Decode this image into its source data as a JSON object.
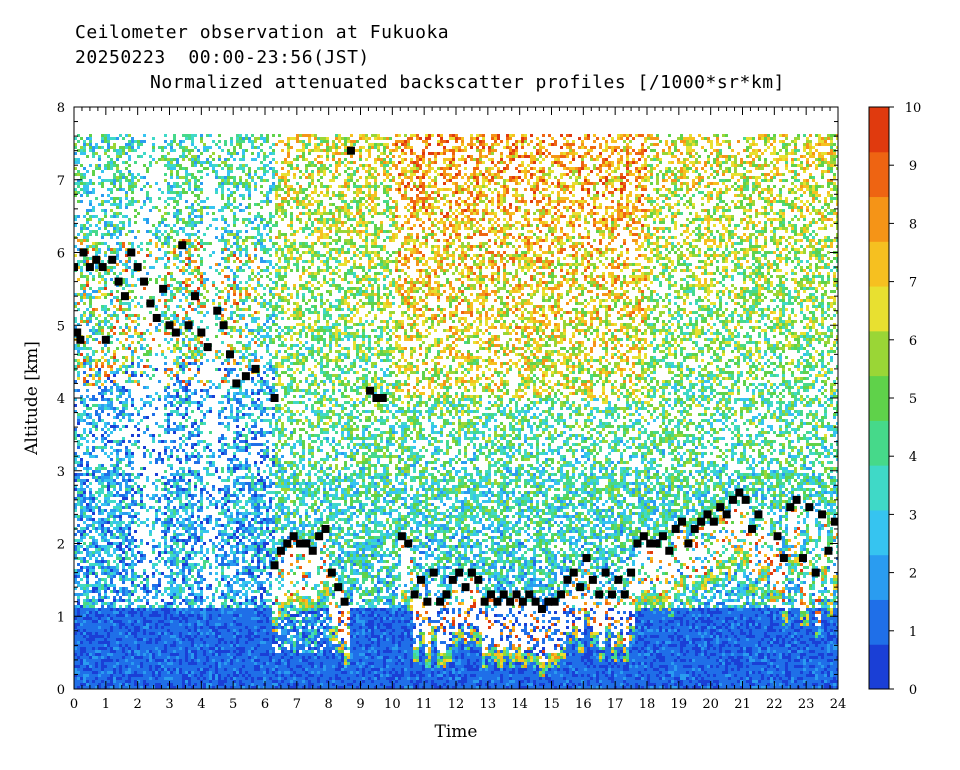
{
  "header": {
    "line1": "Ceilometer observation at Fukuoka",
    "line2": "20250223  00:00-23:56(JST)",
    "line3": "Normalized attenuated backscatter profiles [/1000*sr*km]"
  },
  "chart_data": {
    "type": "heatmap",
    "title": "Normalized attenuated backscatter profiles [/1000*sr*km]",
    "xlabel": "Time",
    "ylabel": "Altitude [km]",
    "xlim": [
      0,
      24
    ],
    "ylim": [
      0,
      8
    ],
    "x_ticks": [
      "0",
      "1",
      "2",
      "3",
      "4",
      "5",
      "6",
      "7",
      "8",
      "9",
      "10",
      "11",
      "12",
      "13",
      "14",
      "15",
      "16",
      "17",
      "18",
      "19",
      "20",
      "21",
      "22",
      "23",
      "24"
    ],
    "y_ticks": [
      "0",
      "1",
      "2",
      "3",
      "4",
      "5",
      "6",
      "7",
      "8"
    ],
    "colorbar": {
      "range": [
        0,
        10
      ],
      "ticks": [
        "0",
        "1",
        "2",
        "3",
        "4",
        "5",
        "6",
        "7",
        "8",
        "9",
        "10"
      ],
      "colors": [
        "#1a3fd6",
        "#1f6fe8",
        "#2a9cf0",
        "#36c4f0",
        "#3fd9c7",
        "#46d98a",
        "#5fd24a",
        "#9ad636",
        "#e8e030",
        "#f6c020",
        "#f59417",
        "#ee6412",
        "#e03a0e"
      ]
    },
    "cloud_base_points": [
      [
        0.0,
        5.8
      ],
      [
        0.1,
        4.9
      ],
      [
        0.2,
        4.8
      ],
      [
        0.3,
        6.0
      ],
      [
        0.5,
        5.8
      ],
      [
        0.7,
        5.9
      ],
      [
        0.9,
        5.8
      ],
      [
        1.0,
        4.8
      ],
      [
        1.2,
        5.9
      ],
      [
        1.4,
        5.6
      ],
      [
        1.6,
        5.4
      ],
      [
        1.8,
        6.0
      ],
      [
        2.0,
        5.8
      ],
      [
        2.2,
        5.6
      ],
      [
        2.4,
        5.3
      ],
      [
        2.6,
        5.1
      ],
      [
        2.8,
        5.5
      ],
      [
        3.0,
        5.0
      ],
      [
        3.2,
        4.9
      ],
      [
        3.4,
        6.1
      ],
      [
        3.6,
        5.0
      ],
      [
        3.8,
        5.4
      ],
      [
        4.0,
        4.9
      ],
      [
        4.2,
        4.7
      ],
      [
        4.5,
        5.2
      ],
      [
        4.7,
        5.0
      ],
      [
        4.9,
        4.6
      ],
      [
        5.1,
        4.2
      ],
      [
        5.4,
        4.3
      ],
      [
        5.7,
        4.4
      ],
      [
        6.3,
        4.0
      ],
      [
        8.7,
        7.4
      ],
      [
        9.3,
        4.1
      ],
      [
        9.5,
        4.0
      ],
      [
        9.7,
        4.0
      ],
      [
        6.3,
        1.7
      ],
      [
        6.5,
        1.9
      ],
      [
        6.7,
        2.0
      ],
      [
        6.9,
        2.1
      ],
      [
        7.1,
        2.0
      ],
      [
        7.3,
        2.0
      ],
      [
        7.5,
        1.9
      ],
      [
        7.7,
        2.1
      ],
      [
        7.9,
        2.2
      ],
      [
        8.1,
        1.6
      ],
      [
        8.3,
        1.4
      ],
      [
        8.5,
        1.2
      ],
      [
        10.3,
        2.1
      ],
      [
        10.5,
        2.0
      ],
      [
        10.7,
        1.3
      ],
      [
        10.9,
        1.5
      ],
      [
        11.1,
        1.2
      ],
      [
        11.3,
        1.6
      ],
      [
        11.5,
        1.2
      ],
      [
        11.7,
        1.3
      ],
      [
        11.9,
        1.5
      ],
      [
        12.1,
        1.6
      ],
      [
        12.3,
        1.4
      ],
      [
        12.5,
        1.6
      ],
      [
        12.7,
        1.5
      ],
      [
        12.9,
        1.2
      ],
      [
        13.1,
        1.3
      ],
      [
        13.3,
        1.2
      ],
      [
        13.5,
        1.3
      ],
      [
        13.7,
        1.2
      ],
      [
        13.9,
        1.3
      ],
      [
        14.1,
        1.2
      ],
      [
        14.3,
        1.3
      ],
      [
        14.5,
        1.2
      ],
      [
        14.7,
        1.1
      ],
      [
        14.9,
        1.2
      ],
      [
        15.1,
        1.2
      ],
      [
        15.3,
        1.3
      ],
      [
        15.5,
        1.5
      ],
      [
        15.7,
        1.6
      ],
      [
        15.9,
        1.4
      ],
      [
        16.1,
        1.8
      ],
      [
        16.3,
        1.5
      ],
      [
        16.5,
        1.3
      ],
      [
        16.7,
        1.6
      ],
      [
        16.9,
        1.3
      ],
      [
        17.1,
        1.5
      ],
      [
        17.3,
        1.3
      ],
      [
        17.5,
        1.6
      ],
      [
        17.7,
        2.0
      ],
      [
        17.9,
        2.1
      ],
      [
        18.1,
        2.0
      ],
      [
        18.3,
        2.0
      ],
      [
        18.5,
        2.1
      ],
      [
        18.7,
        1.9
      ],
      [
        18.9,
        2.2
      ],
      [
        19.1,
        2.3
      ],
      [
        19.3,
        2.0
      ],
      [
        19.5,
        2.2
      ],
      [
        19.7,
        2.3
      ],
      [
        19.9,
        2.4
      ],
      [
        20.1,
        2.3
      ],
      [
        20.3,
        2.5
      ],
      [
        20.5,
        2.4
      ],
      [
        20.7,
        2.6
      ],
      [
        20.9,
        2.7
      ],
      [
        21.1,
        2.6
      ],
      [
        21.3,
        2.2
      ],
      [
        21.5,
        2.4
      ],
      [
        22.1,
        2.1
      ],
      [
        22.3,
        1.8
      ],
      [
        22.5,
        2.5
      ],
      [
        22.7,
        2.6
      ],
      [
        22.9,
        1.8
      ],
      [
        23.1,
        2.5
      ],
      [
        23.3,
        1.6
      ],
      [
        23.5,
        2.4
      ],
      [
        23.7,
        1.9
      ],
      [
        23.9,
        2.3
      ]
    ]
  }
}
